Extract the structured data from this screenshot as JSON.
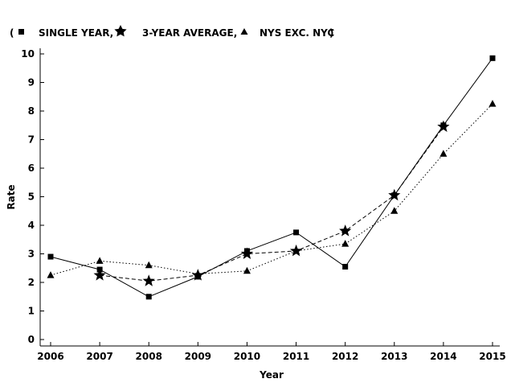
{
  "legend": {
    "open_paren": "(",
    "close_paren": ")",
    "items": [
      {
        "label": "SINGLE YEAR,",
        "marker": "square"
      },
      {
        "label": "3-YEAR AVERAGE,",
        "marker": "star"
      },
      {
        "label": "NYS EXC. NYC",
        "marker": "triangle"
      }
    ]
  },
  "chart_data": {
    "type": "line",
    "title": "",
    "xlabel": "Year",
    "ylabel": "Rate",
    "x": [
      2006,
      2007,
      2008,
      2009,
      2010,
      2011,
      2012,
      2013,
      2014,
      2015
    ],
    "xlim": [
      2006,
      2015
    ],
    "ylim": [
      0,
      10
    ],
    "yticks": [
      0,
      1,
      2,
      3,
      4,
      5,
      6,
      7,
      8,
      9,
      10
    ],
    "grid": false,
    "legend_position": "top-left",
    "series": [
      {
        "name": "SINGLE YEAR",
        "marker": "square",
        "line_style": "solid",
        "values": [
          2.9,
          2.45,
          1.5,
          2.2,
          3.1,
          3.75,
          2.55,
          5.05,
          7.5,
          9.85
        ]
      },
      {
        "name": "3-YEAR AVERAGE",
        "marker": "star",
        "line_style": "dashed",
        "values": [
          null,
          2.25,
          2.05,
          2.25,
          3.0,
          3.1,
          3.8,
          5.05,
          7.45,
          null
        ]
      },
      {
        "name": "NYS EXC. NYC",
        "marker": "triangle",
        "line_style": "dotted",
        "values": [
          2.25,
          2.75,
          2.6,
          2.3,
          2.4,
          3.1,
          3.35,
          4.5,
          6.5,
          8.25
        ]
      }
    ]
  }
}
